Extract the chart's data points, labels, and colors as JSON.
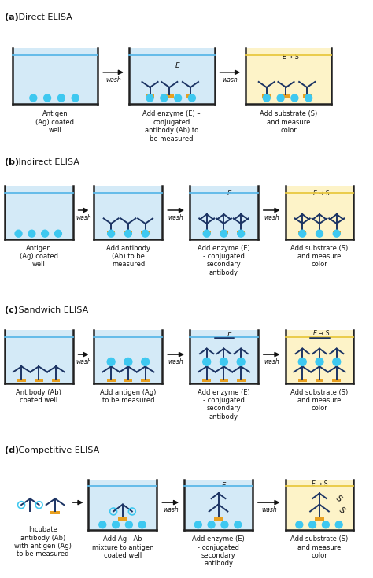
{
  "bg_color": "#ffffff",
  "well_fill_blue": "#d4eaf7",
  "well_fill_yellow": "#fdf3c8",
  "well_stroke": "#222222",
  "water_blue": "#5bb8e8",
  "water_yellow": "#e8c840",
  "ab_dark": "#1c3464",
  "ag_cyan": "#3ec8f0",
  "orange": "#e8a020",
  "text_color": "#111111",
  "lfs": 6.0,
  "sfs": 8.0,
  "sections": [
    "(a)",
    "(b)",
    "(c)",
    "(d)"
  ],
  "section_names": [
    " Direct ELISA",
    " Indirect ELISA",
    " Sandwich ELISA",
    " Competitive ELISA"
  ]
}
